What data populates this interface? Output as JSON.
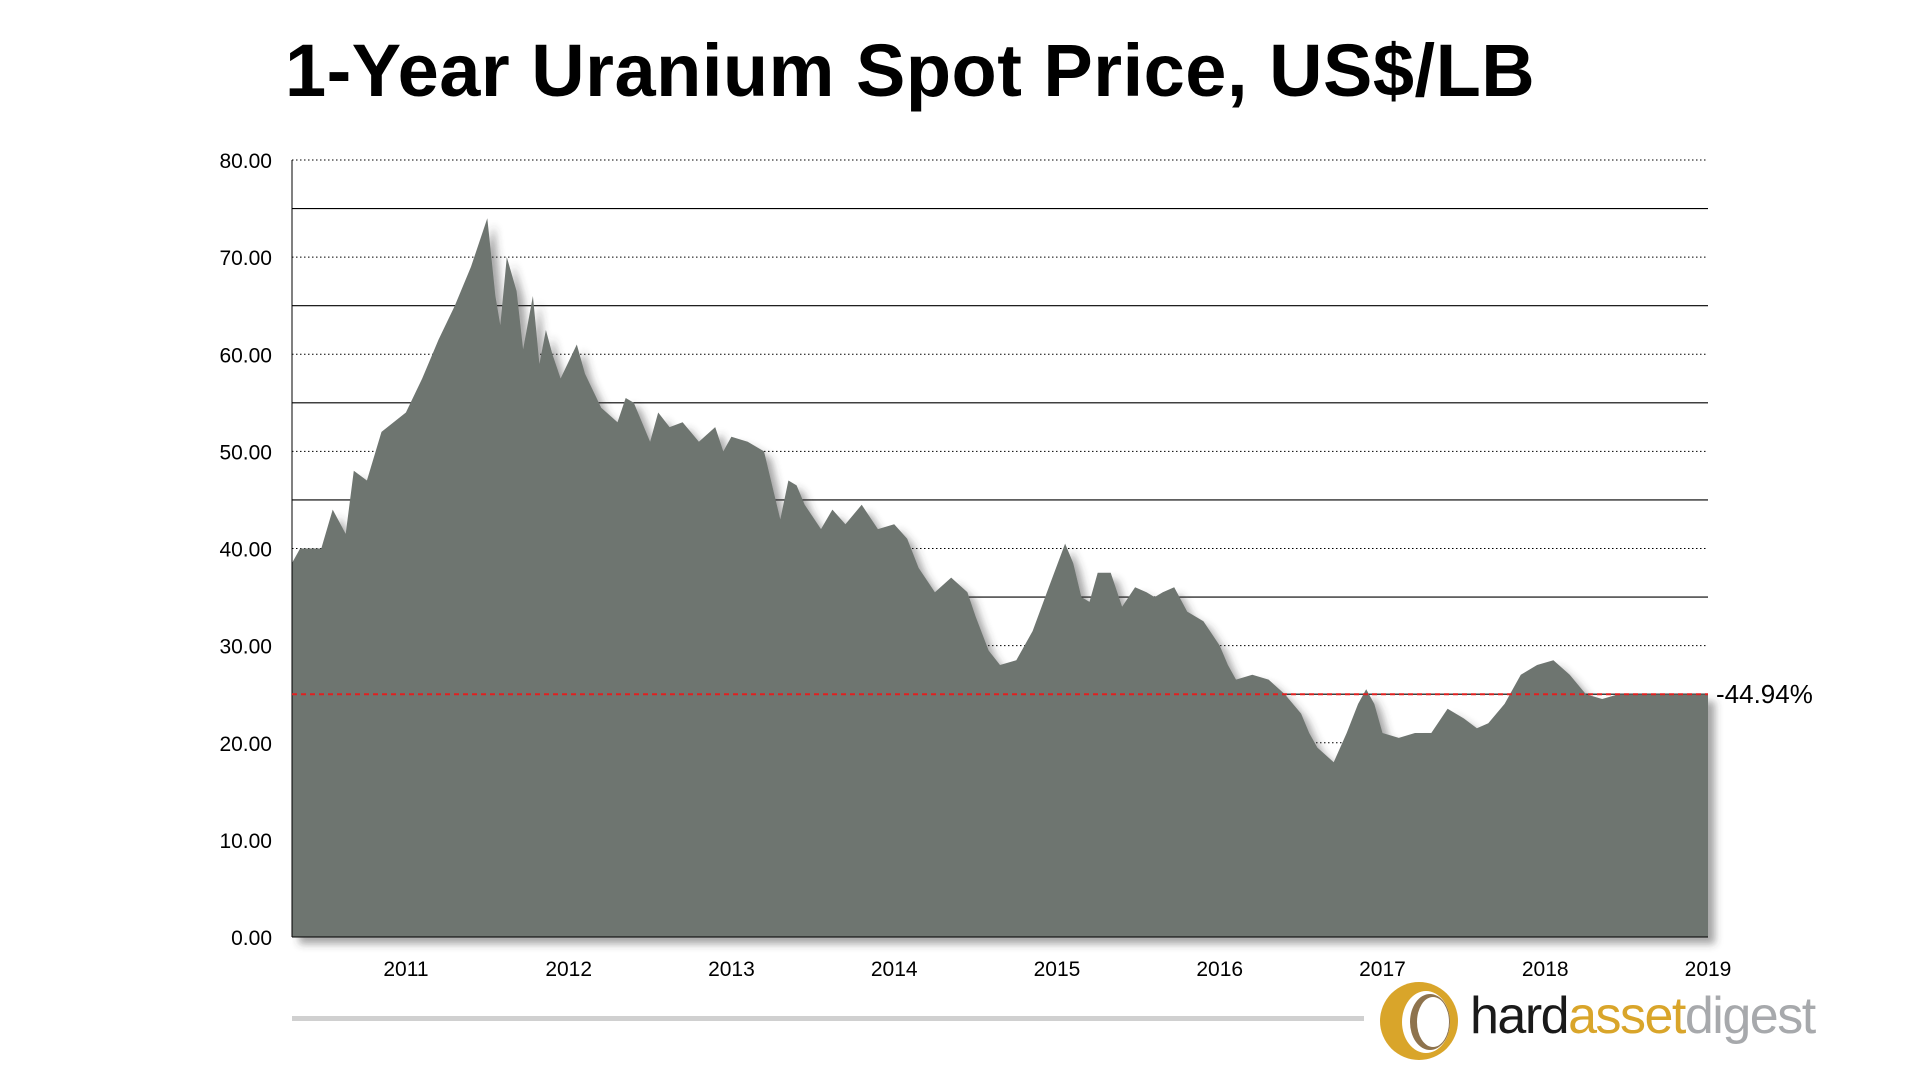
{
  "title": "1-Year Uranium Spot Price, US$/LB",
  "colors": {
    "area": "#6e7470",
    "shadow": "#3a3a3a",
    "reference_line": "#e02020",
    "grid": "#000000",
    "logo_gold": "#d9a52a",
    "logo_gray": "#a7a9ac"
  },
  "chart_data": {
    "type": "area",
    "title": "1-Year Uranium Spot Price, US$/LB",
    "xlabel": "",
    "ylabel": "",
    "ylim": [
      0,
      80
    ],
    "xlim": [
      2010.3,
      2019.0
    ],
    "y_ticks": [
      "0.00",
      "10.00",
      "20.00",
      "30.00",
      "40.00",
      "50.00",
      "60.00",
      "70.00",
      "80.00"
    ],
    "x_ticks": [
      "2011",
      "2012",
      "2013",
      "2014",
      "2015",
      "2016",
      "2017",
      "2018",
      "2019"
    ],
    "grid": "horizontal",
    "reference_line": {
      "value": 25,
      "label": "-44.94%"
    },
    "series": [
      {
        "x": [
          2010.3,
          2010.35,
          2010.48,
          2010.55,
          2010.63,
          2010.68,
          2010.76,
          2010.85,
          2011.0,
          2011.1,
          2011.2,
          2011.3,
          2011.4,
          2011.5,
          2011.55,
          2011.58,
          2011.62,
          2011.68,
          2011.72,
          2011.78,
          2011.82,
          2011.86,
          2011.9,
          2011.95,
          2012.05,
          2012.1,
          2012.2,
          2012.3,
          2012.35,
          2012.4,
          2012.5,
          2012.55,
          2012.62,
          2012.7,
          2012.8,
          2012.9,
          2012.95,
          2013.0,
          2013.1,
          2013.2,
          2013.3,
          2013.35,
          2013.4,
          2013.45,
          2013.55,
          2013.62,
          2013.7,
          2013.8,
          2013.9,
          2014.0,
          2014.08,
          2014.15,
          2014.25,
          2014.35,
          2014.45,
          2014.5,
          2014.58,
          2014.65,
          2014.75,
          2014.85,
          2014.95,
          2015.05,
          2015.1,
          2015.15,
          2015.2,
          2015.25,
          2015.33,
          2015.4,
          2015.48,
          2015.55,
          2015.6,
          2015.65,
          2015.72,
          2015.8,
          2015.9,
          2016.0,
          2016.05,
          2016.1,
          2016.2,
          2016.3,
          2016.4,
          2016.5,
          2016.55,
          2016.6,
          2016.7,
          2016.78,
          2016.85,
          2016.9,
          2016.95,
          2017.0,
          2017.1,
          2017.2,
          2017.3,
          2017.4,
          2017.5,
          2017.58,
          2017.65,
          2017.75,
          2017.85,
          2017.95,
          2018.05,
          2018.15,
          2018.25,
          2018.35,
          2018.45,
          2018.55,
          2018.65,
          2018.75,
          2018.85,
          2019.0
        ],
        "values": [
          38.5,
          40.0,
          40.0,
          44.0,
          41.5,
          48.0,
          47.0,
          52.0,
          54.0,
          57.5,
          61.5,
          65.0,
          69.0,
          74.0,
          66.0,
          63.0,
          70.0,
          66.5,
          60.5,
          66.0,
          59.0,
          62.5,
          60.0,
          57.5,
          61.0,
          58.0,
          54.5,
          53.0,
          55.5,
          55.0,
          51.0,
          54.0,
          52.5,
          53.0,
          51.0,
          52.5,
          50.0,
          51.5,
          51.0,
          50.0,
          43.0,
          47.0,
          46.5,
          44.5,
          42.0,
          44.0,
          42.5,
          44.5,
          42.0,
          42.5,
          41.0,
          38.0,
          35.5,
          37.0,
          35.5,
          33.0,
          29.5,
          28.0,
          28.5,
          31.5,
          36.0,
          40.5,
          38.5,
          35.0,
          34.5,
          37.5,
          37.5,
          34.0,
          36.0,
          35.5,
          35.0,
          35.5,
          36.0,
          33.5,
          32.5,
          30.0,
          28.0,
          26.5,
          27.0,
          26.5,
          25.0,
          23.0,
          21.0,
          19.5,
          18.0,
          21.0,
          24.0,
          25.5,
          24.0,
          21.0,
          20.5,
          21.0,
          21.0,
          23.5,
          22.5,
          21.5,
          22.0,
          24.0,
          27.0,
          28.0,
          28.5,
          27.0,
          25.0,
          24.5,
          25.0,
          25.0,
          25.0,
          25.0,
          25.0,
          25.0
        ]
      }
    ]
  },
  "logo": {
    "hard": "hard",
    "asset": "asset",
    "digest": "digest"
  }
}
